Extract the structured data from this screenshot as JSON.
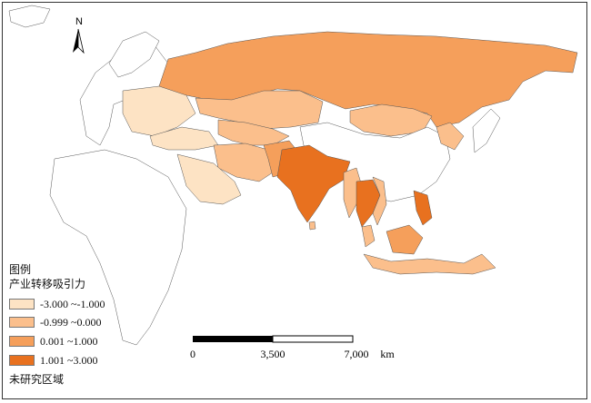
{
  "map": {
    "north_label": "N",
    "legend": {
      "title": "图例",
      "subtitle": "产业转移吸引力",
      "classes": [
        {
          "label": "-3.000 ~-1.000",
          "color": "#fde3c4"
        },
        {
          "label": "-0.999 ~0.000",
          "color": "#fbbf8c"
        },
        {
          "label": "0.001 ~1.000",
          "color": "#f59f5b"
        },
        {
          "label": "1.001 ~3.000",
          "color": "#e8711f"
        },
        {
          "label": "未研究区域",
          "color": "#ffffff"
        }
      ]
    },
    "scale_bar": {
      "ticks": [
        "0",
        "3,500",
        "7,000"
      ],
      "unit": "km"
    }
  }
}
